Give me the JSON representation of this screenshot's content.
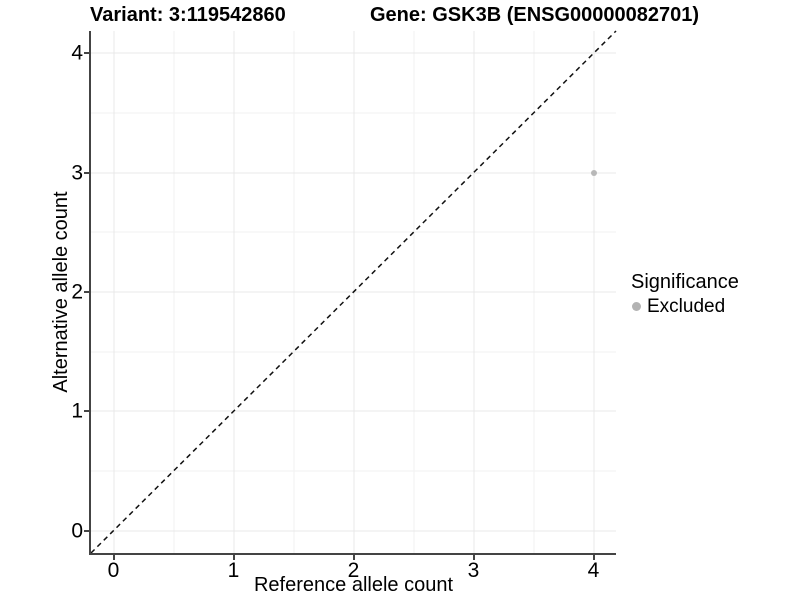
{
  "chart_data": {
    "type": "scatter",
    "title_left": "Variant: 3:119542860",
    "title_right": "Gene: GSK3B (ENSG00000082701)",
    "xlabel": "Reference allele count",
    "ylabel": "Alternative allele count",
    "xlim": [
      -0.1875,
      4.1875
    ],
    "ylim": [
      -0.1875,
      4.1875
    ],
    "x_ticks": [
      0,
      1,
      2,
      3,
      4
    ],
    "y_ticks": [
      0,
      1,
      2,
      3,
      4
    ],
    "x_minor_ticks": [
      0.5,
      1.5,
      2.5,
      3.5
    ],
    "y_minor_ticks": [
      0.5,
      1.5,
      2.5,
      3.5
    ],
    "grid": "major-and-minor",
    "legend_position": "right",
    "reference_line": {
      "kind": "identity y=x",
      "style": "dashed",
      "color": "#111111"
    },
    "series": [
      {
        "name": "Excluded",
        "color": "#b8b8b8",
        "points": [
          {
            "x": 4,
            "y": 3
          }
        ]
      }
    ],
    "legend": {
      "title": "Significance",
      "entries": [
        {
          "label": "Excluded",
          "color": "#b3b3b3"
        }
      ]
    }
  },
  "colors": {
    "background": "#ffffff",
    "axis_line": "#444444",
    "grid_major": "#e8e8e8",
    "grid_minor": "#f2f2f2",
    "text": "#000000"
  }
}
